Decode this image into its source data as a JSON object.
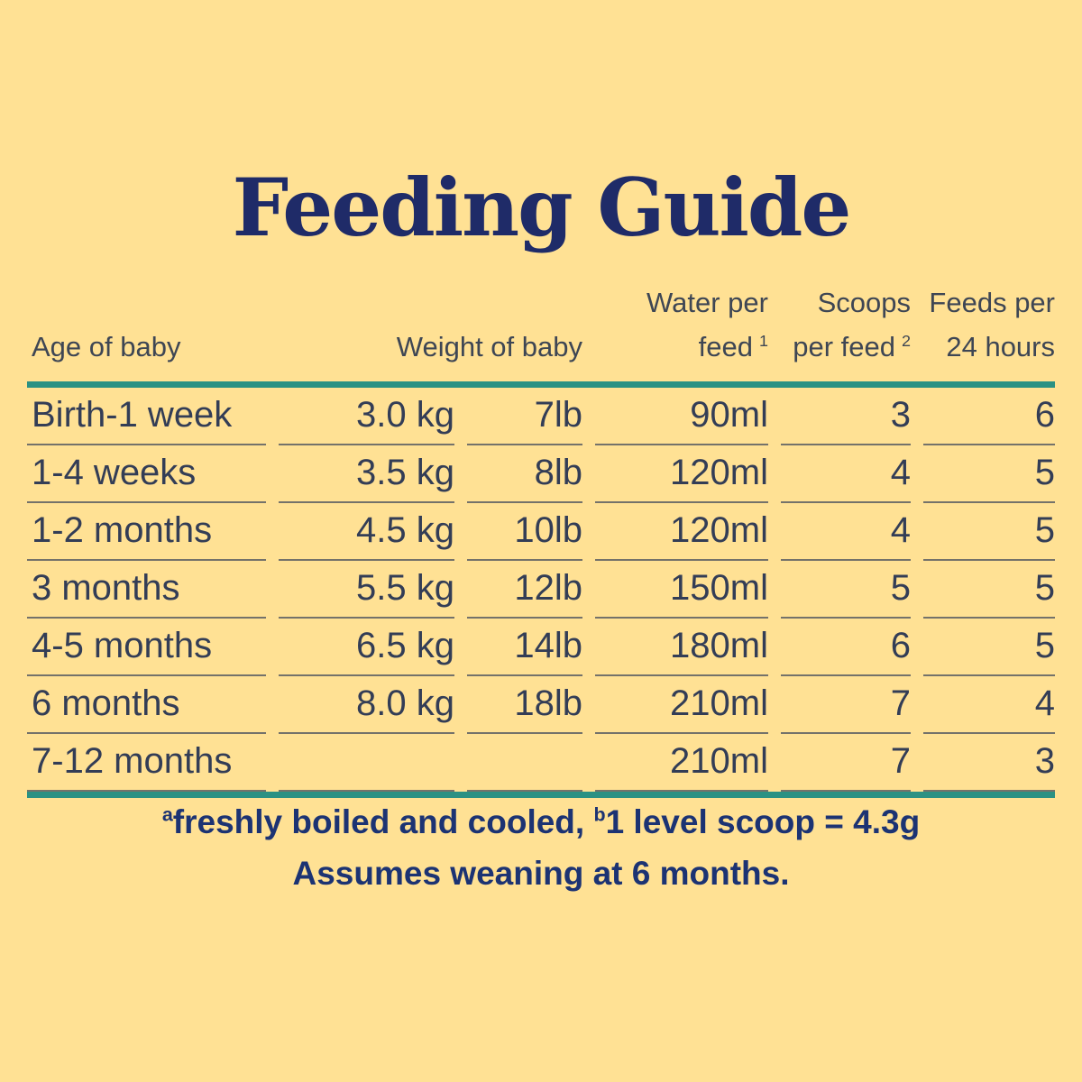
{
  "colors": {
    "background": "#FFE194",
    "title_navy": "#1F2B68",
    "header_text": "#3E4654",
    "body_text": "#333D56",
    "rule_teal": "#2B9183",
    "footnote_navy": "#1C3373"
  },
  "title": "Feeding Guide",
  "table": {
    "headers": {
      "age": "Age of baby",
      "weight": "Weight of baby",
      "water_line1": "Water per",
      "water_line2": "feed",
      "water_sup": "1",
      "scoops_line1": "Scoops",
      "scoops_line2": "per feed",
      "scoops_sup": "2",
      "feeds_line1": "Feeds per",
      "feeds_line2": "24 hours"
    },
    "rows": [
      {
        "age": "Birth-1 week",
        "kg": "3.0 kg",
        "lb": "7lb",
        "water": "90ml",
        "scoops": "3",
        "feeds": "6"
      },
      {
        "age": "1-4 weeks",
        "kg": "3.5 kg",
        "lb": "8lb",
        "water": "120ml",
        "scoops": "4",
        "feeds": "5"
      },
      {
        "age": "1-2 months",
        "kg": "4.5 kg",
        "lb": "10lb",
        "water": "120ml",
        "scoops": "4",
        "feeds": "5"
      },
      {
        "age": "3 months",
        "kg": "5.5 kg",
        "lb": "12lb",
        "water": "150ml",
        "scoops": "5",
        "feeds": "5"
      },
      {
        "age": "4-5 months",
        "kg": "6.5 kg",
        "lb": "14lb",
        "water": "180ml",
        "scoops": "6",
        "feeds": "5"
      },
      {
        "age": "6 months",
        "kg": "8.0 kg",
        "lb": "18lb",
        "water": "210ml",
        "scoops": "7",
        "feeds": "4"
      },
      {
        "age": "7-12 months",
        "kg": "",
        "lb": "",
        "water": "210ml",
        "scoops": "7",
        "feeds": "3"
      }
    ]
  },
  "footnotes": {
    "sup_a": "a",
    "note_a": "freshly boiled and cooled, ",
    "sup_b": "b",
    "note_b": "1 level scoop = 4.3g",
    "line2": "Assumes weaning at 6 months."
  },
  "chart_data": {
    "type": "table",
    "title": "Feeding Guide",
    "columns": [
      "Age of baby",
      "Weight of baby (kg)",
      "Weight of baby (lb)",
      "Water per feed",
      "Scoops per feed",
      "Feeds per 24 hours"
    ],
    "rows": [
      [
        "Birth-1 week",
        "3.0 kg",
        "7lb",
        "90ml",
        3,
        6
      ],
      [
        "1-4 weeks",
        "3.5 kg",
        "8lb",
        "120ml",
        4,
        5
      ],
      [
        "1-2 months",
        "4.5 kg",
        "10lb",
        "120ml",
        4,
        5
      ],
      [
        "3 months",
        "5.5 kg",
        "12lb",
        "150ml",
        5,
        5
      ],
      [
        "4-5 months",
        "6.5 kg",
        "14lb",
        "180ml",
        6,
        5
      ],
      [
        "6 months",
        "8.0 kg",
        "18lb",
        "210ml",
        7,
        4
      ],
      [
        "7-12 months",
        "",
        "",
        "210ml",
        7,
        3
      ]
    ],
    "footnote_refs": {
      "1": "freshly boiled and cooled",
      "2": "1 level scoop = 4.3g"
    },
    "notes": [
      "a freshly boiled and cooled",
      "b 1 level scoop = 4.3g",
      "Assumes weaning at 6 months."
    ]
  }
}
